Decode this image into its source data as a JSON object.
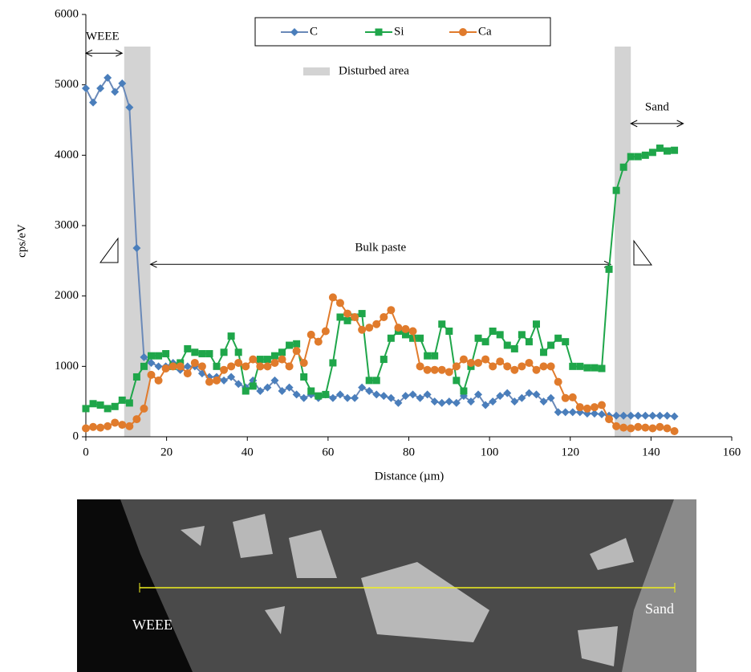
{
  "chart_data": {
    "type": "line",
    "xlabel": "Distance (µm)",
    "ylabel": "cps/eV",
    "xlim": [
      0,
      160
    ],
    "xticks": [
      0,
      20,
      40,
      60,
      80,
      100,
      120,
      140,
      160
    ],
    "ylim": [
      0,
      6000
    ],
    "yticks": [
      0,
      1000,
      2000,
      3000,
      4000,
      5000,
      6000
    ],
    "legend": "top",
    "x": [
      0,
      1.8,
      3.6,
      5.4,
      7.2,
      9,
      10.8,
      12.6,
      14.4,
      16.2,
      18,
      19.8,
      21.6,
      23.4,
      25.2,
      27,
      28.8,
      30.6,
      32.4,
      34.2,
      36,
      37.8,
      39.6,
      41.4,
      43.2,
      45,
      46.8,
      48.6,
      50.4,
      52.2,
      54,
      55.8,
      57.6,
      59.4,
      61.2,
      63,
      64.8,
      66.6,
      68.4,
      70.2,
      72,
      73.8,
      75.6,
      77.4,
      79.2,
      81,
      82.8,
      84.6,
      86.4,
      88.2,
      90,
      91.8,
      93.6,
      95.4,
      97.2,
      99,
      100.8,
      102.6,
      104.4,
      106.2,
      108,
      109.8,
      111.6,
      113.4,
      115.2,
      117,
      118.8,
      120.6,
      122.4,
      124.2,
      126,
      127.8,
      129.6,
      131.4,
      133.2,
      135,
      136.8,
      138.6,
      140.4,
      142.2,
      144,
      145.8
    ],
    "series": [
      {
        "name": "C",
        "color": "#4a7ebb",
        "line_color": "#6a89b8",
        "marker": "diamond",
        "values": [
          4950,
          4750,
          4950,
          5100,
          4900,
          5020,
          4680,
          2680,
          1130,
          1050,
          1000,
          1000,
          1050,
          950,
          1000,
          1000,
          900,
          850,
          850,
          800,
          850,
          750,
          700,
          800,
          650,
          700,
          800,
          650,
          700,
          600,
          550,
          600,
          550,
          600,
          550,
          600,
          550,
          550,
          700,
          650,
          600,
          580,
          550,
          480,
          580,
          600,
          550,
          600,
          500,
          480,
          500,
          480,
          580,
          500,
          600,
          450,
          500,
          580,
          620,
          500,
          550,
          620,
          600,
          500,
          550,
          350,
          350,
          350,
          350,
          330,
          330,
          320,
          300,
          300,
          300,
          300,
          300,
          300,
          300,
          300,
          300,
          290
        ]
      },
      {
        "name": "Si",
        "color": "#1fa64a",
        "line_color": "#1fa64a",
        "marker": "square",
        "values": [
          400,
          470,
          450,
          400,
          430,
          520,
          480,
          850,
          1000,
          1150,
          1150,
          1180,
          1000,
          1050,
          1250,
          1200,
          1180,
          1180,
          1000,
          1200,
          1430,
          1200,
          650,
          720,
          1100,
          1100,
          1150,
          1200,
          1300,
          1320,
          850,
          650,
          580,
          600,
          1050,
          1700,
          1650,
          1700,
          1750,
          800,
          800,
          1100,
          1400,
          1500,
          1450,
          1400,
          1400,
          1150,
          1150,
          1600,
          1500,
          800,
          650,
          1000,
          1400,
          1350,
          1500,
          1450,
          1300,
          1250,
          1450,
          1350,
          1600,
          1200,
          1300,
          1400,
          1350,
          1000,
          1000,
          980,
          980,
          970,
          2380,
          3500,
          3830,
          3980,
          3980,
          4000,
          4040,
          4100,
          4060,
          4070
        ]
      },
      {
        "name": "Ca",
        "color": "#e07b2c",
        "line_color": "#e07b2c",
        "marker": "circle",
        "values": [
          120,
          140,
          130,
          150,
          200,
          170,
          150,
          250,
          400,
          880,
          800,
          970,
          1000,
          1000,
          900,
          1050,
          1000,
          780,
          800,
          950,
          1000,
          1050,
          1000,
          1100,
          1000,
          1000,
          1050,
          1100,
          1000,
          1220,
          1050,
          1450,
          1350,
          1500,
          1980,
          1900,
          1750,
          1700,
          1520,
          1550,
          1600,
          1700,
          1800,
          1550,
          1530,
          1500,
          1000,
          950,
          950,
          950,
          920,
          1000,
          1100,
          1050,
          1050,
          1100,
          1000,
          1070,
          1000,
          950,
          1000,
          1050,
          950,
          1000,
          1000,
          780,
          550,
          560,
          420,
          400,
          420,
          450,
          250,
          150,
          130,
          120,
          140,
          130,
          120,
          140,
          120,
          80
        ]
      }
    ],
    "shaded": {
      "name": "Disturbed area",
      "color": "#d3d3d3",
      "ranges": [
        [
          9.5,
          16
        ],
        [
          131,
          135
        ]
      ]
    },
    "annotations": [
      {
        "text": "WEEE",
        "x": [
          0,
          9
        ],
        "y": 5450
      },
      {
        "text": "Bulk paste",
        "x": [
          16,
          130
        ],
        "y": 2450
      },
      {
        "text": "Sand",
        "x": [
          135,
          148
        ],
        "y": 4450
      }
    ]
  },
  "micrograph": {
    "labels": [
      "WEEE",
      "Sand"
    ]
  }
}
